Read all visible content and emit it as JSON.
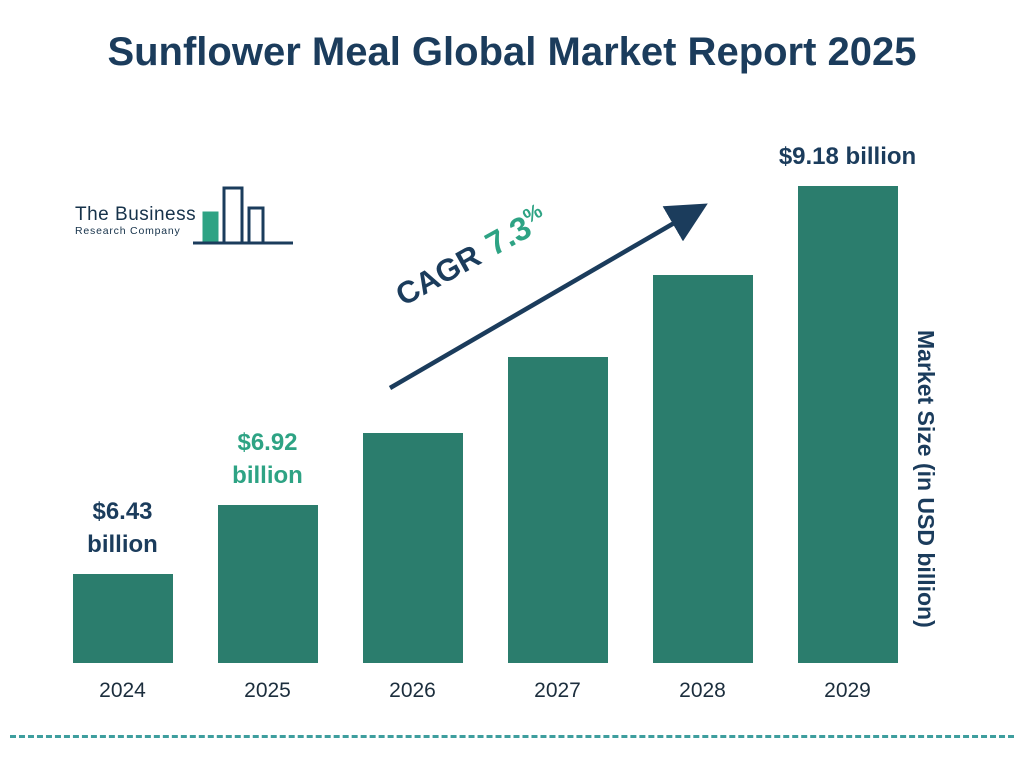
{
  "title": "Sunflower Meal Global Market Report 2025",
  "logo": {
    "line1": "The Business",
    "line2": "Research Company"
  },
  "cagr": {
    "prefix": "CAGR",
    "value": "7.3",
    "suffix": "%"
  },
  "colors": {
    "navy": "#1B3C5C",
    "green": "#2EA384",
    "bar": "#2B7D6D",
    "divider": "#3E9E9E"
  },
  "chart_data": {
    "type": "bar",
    "title": "Sunflower Meal Global Market Report 2025",
    "categories": [
      "2024",
      "2025",
      "2026",
      "2027",
      "2028",
      "2029"
    ],
    "values": [
      6.43,
      6.92,
      7.43,
      7.97,
      8.55,
      9.18
    ],
    "unit": "USD billion",
    "xlabel": "",
    "ylabel": "Market Size (in USD billion)",
    "y_min": 5.8,
    "y_max": 9.18,
    "grid": false,
    "legend": "none",
    "cagr_annotation": "CAGR 7.3%",
    "annotations": [
      {
        "category": "2024",
        "lines": [
          "$6.43",
          "billion"
        ],
        "color": "navy"
      },
      {
        "category": "2025",
        "lines": [
          "$6.92",
          "billion"
        ],
        "color": "green"
      },
      {
        "category": "2029",
        "lines": [
          "$9.18 billion"
        ],
        "color": "navy"
      }
    ]
  }
}
